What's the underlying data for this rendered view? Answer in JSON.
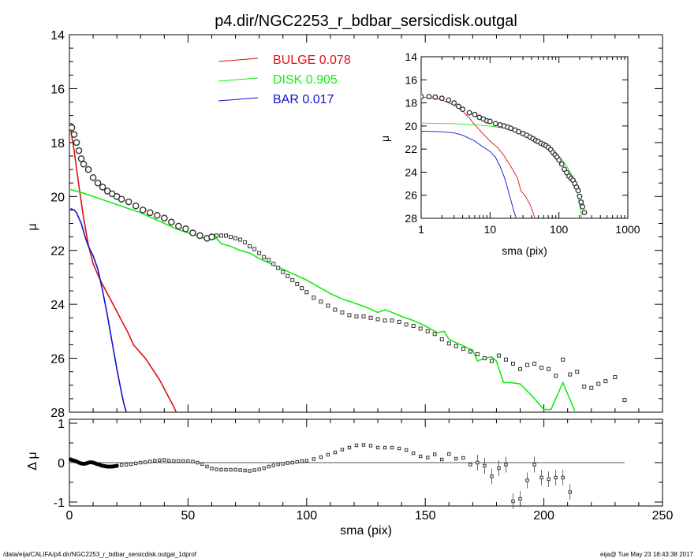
{
  "title": "p4.dir/NGC2253_r_bdbar_sersicdisk.outgal",
  "footer_left": "/data/eija/CALIFA/p4.dir/NGC2253_r_bdbar_sersicdisk.outgal_1dprof",
  "footer_right": "eija@  Tue May 23 18:43:38 2017",
  "colors": {
    "bulge": "#dd1111",
    "disk": "#11ee11",
    "bar": "#1111cc",
    "data": "#000000"
  },
  "chart_data": [
    {
      "id": "main",
      "type": "line",
      "xlabel": "",
      "ylabel": "μ",
      "xlim": [
        0,
        250
      ],
      "ylim": [
        28,
        14
      ],
      "yticks": [
        14,
        16,
        18,
        20,
        22,
        24,
        26,
        28
      ],
      "legend": [
        {
          "label": "BULGE",
          "value": "0.078",
          "color": "#dd1111"
        },
        {
          "label": "DISK",
          "value": "0.905",
          "color": "#11ee11"
        },
        {
          "label": "BAR",
          "value": "0.017",
          "color": "#1111cc"
        }
      ],
      "series": [
        {
          "name": "BULGE",
          "color": "#dd1111",
          "x": [
            0.5,
            2,
            4,
            6,
            8,
            10,
            13,
            16,
            19,
            22,
            25,
            27,
            28,
            29,
            30,
            32,
            35,
            38,
            41,
            44,
            45
          ],
          "y": [
            17.5,
            18.3,
            19.6,
            20.8,
            21.8,
            22.5,
            23.1,
            23.6,
            24.1,
            24.6,
            25.1,
            25.5,
            25.6,
            25.7,
            25.8,
            26.0,
            26.4,
            26.8,
            27.3,
            27.8,
            28.0
          ]
        },
        {
          "name": "DISK",
          "color": "#11ee11",
          "x": [
            0.5,
            5,
            10,
            15,
            20,
            25,
            30,
            35,
            40,
            45,
            50,
            55,
            58,
            60,
            62,
            64,
            68,
            72,
            76,
            80,
            85,
            90,
            95,
            100,
            105,
            110,
            115,
            120,
            125,
            130,
            133,
            136,
            140,
            145,
            150,
            155,
            158,
            160,
            165,
            170,
            172,
            175,
            178,
            180,
            183,
            186,
            190,
            195,
            200,
            203,
            208,
            213
          ],
          "y": [
            19.75,
            19.85,
            20.0,
            20.15,
            20.3,
            20.45,
            20.6,
            20.8,
            21.0,
            21.2,
            21.35,
            21.5,
            21.6,
            21.6,
            21.55,
            21.75,
            21.85,
            22.0,
            22.1,
            22.3,
            22.5,
            22.7,
            22.9,
            23.1,
            23.35,
            23.6,
            23.8,
            23.95,
            24.1,
            24.3,
            24.2,
            24.3,
            24.45,
            24.6,
            24.8,
            25.05,
            25.0,
            25.3,
            25.5,
            25.7,
            26.1,
            26.0,
            25.95,
            26.1,
            26.9,
            26.9,
            26.95,
            27.4,
            27.9,
            27.9,
            26.9,
            27.95
          ]
        },
        {
          "name": "BAR",
          "color": "#1111cc",
          "x": [
            0.5,
            2,
            3,
            4,
            5,
            6,
            7,
            8,
            10,
            12,
            14,
            16,
            18,
            20,
            22,
            23,
            24
          ],
          "y": [
            20.45,
            20.5,
            20.6,
            20.8,
            21.0,
            21.3,
            21.6,
            21.85,
            22.2,
            22.7,
            23.5,
            24.4,
            25.4,
            26.4,
            27.3,
            27.7,
            28.0
          ]
        },
        {
          "name": "",
          "color": "#000000",
          "x": [
            0.5,
            1,
            2,
            3,
            4,
            5,
            6,
            8,
            10,
            12,
            14,
            16,
            18,
            20,
            22,
            25,
            28,
            31,
            34,
            37,
            40,
            43,
            46,
            49,
            52,
            55,
            58,
            60,
            62,
            64,
            66,
            68,
            70,
            72,
            74,
            76,
            78,
            80,
            82,
            84,
            86,
            88,
            90,
            92,
            94,
            96,
            98,
            100,
            103,
            106,
            109,
            112,
            115,
            118,
            121,
            124,
            127,
            130,
            133,
            136,
            139,
            142,
            145,
            148,
            151,
            154,
            157,
            160,
            163,
            166,
            169,
            172,
            175,
            178,
            181,
            184,
            187,
            190,
            193,
            196,
            199,
            202,
            205,
            208,
            211,
            214,
            217,
            220,
            223,
            226,
            230,
            234
          ],
          "y": [
            17.4,
            17.45,
            17.7,
            18.0,
            18.3,
            18.6,
            18.8,
            19.0,
            19.3,
            19.5,
            19.65,
            19.8,
            19.9,
            20.0,
            20.1,
            20.2,
            20.35,
            20.5,
            20.6,
            20.7,
            20.8,
            20.95,
            21.1,
            21.2,
            21.35,
            21.45,
            21.55,
            21.5,
            21.45,
            21.45,
            21.45,
            21.5,
            21.55,
            21.6,
            21.7,
            21.85,
            21.95,
            22.1,
            22.25,
            22.35,
            22.5,
            22.65,
            22.8,
            22.95,
            23.1,
            23.25,
            23.4,
            23.55,
            23.75,
            23.9,
            24.05,
            24.2,
            24.3,
            24.4,
            24.45,
            24.45,
            24.5,
            24.55,
            24.6,
            24.6,
            24.65,
            24.75,
            24.8,
            24.9,
            25.0,
            25.1,
            25.3,
            25.45,
            25.55,
            25.65,
            25.75,
            25.85,
            26.0,
            26.1,
            25.9,
            26.05,
            26.2,
            26.4,
            26.25,
            26.2,
            26.35,
            26.4,
            26.65,
            26.05,
            26.6,
            26.5,
            27.05,
            27.1,
            26.95,
            26.85,
            26.7,
            27.55
          ]
        }
      ]
    },
    {
      "id": "residual",
      "type": "scatter",
      "xlabel": "sma (pix)",
      "ylabel": "Δ μ",
      "xlim": [
        0,
        250
      ],
      "ylim": [
        -1.1,
        1.1
      ],
      "xticks": [
        0,
        50,
        100,
        150,
        200,
        250
      ],
      "yticks": [
        -1,
        0,
        1
      ],
      "zero_line_to": 234,
      "series": [
        {
          "name": "",
          "color": "#000000",
          "x": [
            0.5,
            1,
            2,
            3,
            4,
            5,
            6,
            7,
            8,
            9,
            10,
            11,
            12,
            13,
            14,
            15,
            16,
            17,
            18,
            19,
            20,
            22,
            24,
            26,
            28,
            30,
            32,
            34,
            36,
            38,
            40,
            42,
            44,
            46,
            48,
            50,
            52,
            54,
            56,
            58,
            60,
            62,
            64,
            66,
            68,
            70,
            72,
            74,
            76,
            78,
            80,
            82,
            84,
            86,
            88,
            90,
            92,
            94,
            96,
            98,
            100,
            103,
            106,
            109,
            112,
            115,
            118,
            121,
            124,
            127,
            130,
            133,
            136,
            139,
            142,
            145,
            148,
            151,
            154,
            157,
            160,
            163,
            166,
            169,
            172,
            175,
            178,
            181,
            184,
            187,
            190,
            193,
            196,
            199,
            202,
            205,
            208,
            211
          ],
          "y": [
            0.08,
            0.07,
            0.05,
            0.03,
            0.0,
            -0.02,
            -0.03,
            -0.02,
            0.0,
            0.01,
            0.0,
            -0.02,
            -0.04,
            -0.06,
            -0.08,
            -0.09,
            -0.1,
            -0.1,
            -0.1,
            -0.09,
            -0.08,
            -0.06,
            -0.05,
            -0.04,
            -0.02,
            0.0,
            0.01,
            0.03,
            0.05,
            0.06,
            0.07,
            0.05,
            0.04,
            0.04,
            0.04,
            0.04,
            0.03,
            0.0,
            -0.04,
            -0.1,
            -0.15,
            -0.17,
            -0.18,
            -0.18,
            -0.18,
            -0.18,
            -0.19,
            -0.2,
            -0.21,
            -0.19,
            -0.17,
            -0.14,
            -0.1,
            -0.07,
            -0.04,
            -0.03,
            -0.01,
            0.0,
            0.02,
            0.04,
            0.05,
            0.09,
            0.14,
            0.2,
            0.26,
            0.33,
            0.38,
            0.44,
            0.45,
            0.43,
            0.38,
            0.38,
            0.38,
            0.36,
            0.32,
            0.24,
            0.16,
            0.13,
            0.21,
            0.08,
            0.22,
            0.1,
            0.12,
            -0.05,
            0.0,
            -0.08,
            -0.35,
            -0.14,
            -0.05,
            -0.98,
            -0.92,
            -0.45,
            -0.05,
            -0.38,
            -0.42,
            -0.38,
            -0.38,
            -0.75
          ]
        }
      ]
    },
    {
      "id": "inset",
      "type": "line",
      "xlabel": "sma (pix)",
      "ylabel": "μ",
      "xscale": "log",
      "xlim": [
        1,
        1000
      ],
      "ylim": [
        28,
        14
      ],
      "xticks": [
        1,
        10,
        100,
        1000
      ],
      "yticks": [
        14,
        16,
        18,
        20,
        22,
        24,
        26,
        28
      ],
      "series": [
        {
          "name": "BULGE",
          "color": "#dd1111",
          "x": [
            1,
            1.5,
            2,
            3,
            4,
            5,
            6,
            8,
            10,
            13,
            16,
            20,
            25,
            28,
            32,
            38,
            45
          ],
          "y": [
            17.5,
            17.6,
            17.75,
            18.2,
            18.7,
            19.3,
            19.9,
            20.7,
            21.3,
            21.9,
            22.6,
            23.5,
            24.5,
            25.6,
            26.0,
            26.8,
            28.0
          ]
        },
        {
          "name": "DISK",
          "color": "#11ee11",
          "x": [
            1,
            3,
            6,
            10,
            15,
            20,
            30,
            45,
            60,
            80,
            100,
            130,
            160,
            180,
            200,
            215
          ],
          "y": [
            19.75,
            19.8,
            19.9,
            20.0,
            20.15,
            20.3,
            20.6,
            21.1,
            21.6,
            22.1,
            22.6,
            23.5,
            24.4,
            25.4,
            26.9,
            28.0
          ]
        },
        {
          "name": "BAR",
          "color": "#1111cc",
          "x": [
            1,
            2,
            3,
            4,
            6,
            8,
            10,
            12,
            14,
            16,
            18,
            20,
            22,
            24
          ],
          "y": [
            20.45,
            20.5,
            20.6,
            20.8,
            21.3,
            21.85,
            22.2,
            22.7,
            23.5,
            24.4,
            25.4,
            26.4,
            27.3,
            28.0
          ]
        },
        {
          "name": "",
          "color": "#000000",
          "x": [
            1,
            1.3,
            1.6,
            2,
            2.5,
            3,
            3.5,
            4,
            5,
            6,
            7,
            8,
            9,
            10,
            12,
            14,
            16,
            18,
            20,
            23,
            26,
            30,
            34,
            38,
            42,
            46,
            50,
            55,
            60,
            65,
            70,
            76,
            82,
            88,
            94,
            100,
            110,
            120,
            130,
            140,
            150,
            160,
            170,
            180,
            190,
            200,
            210,
            220,
            234
          ],
          "y": [
            17.45,
            17.45,
            17.5,
            17.6,
            17.75,
            18.0,
            18.3,
            18.55,
            18.85,
            19.0,
            19.25,
            19.4,
            19.55,
            19.6,
            19.8,
            19.9,
            20.0,
            20.1,
            20.2,
            20.35,
            20.5,
            20.65,
            20.8,
            20.95,
            21.1,
            21.25,
            21.35,
            21.5,
            21.6,
            21.7,
            21.85,
            22.05,
            22.3,
            22.5,
            22.7,
            22.95,
            23.3,
            23.75,
            24.05,
            24.35,
            24.55,
            24.7,
            25.0,
            25.3,
            25.6,
            26.1,
            26.6,
            27.0,
            27.5
          ]
        }
      ]
    }
  ]
}
